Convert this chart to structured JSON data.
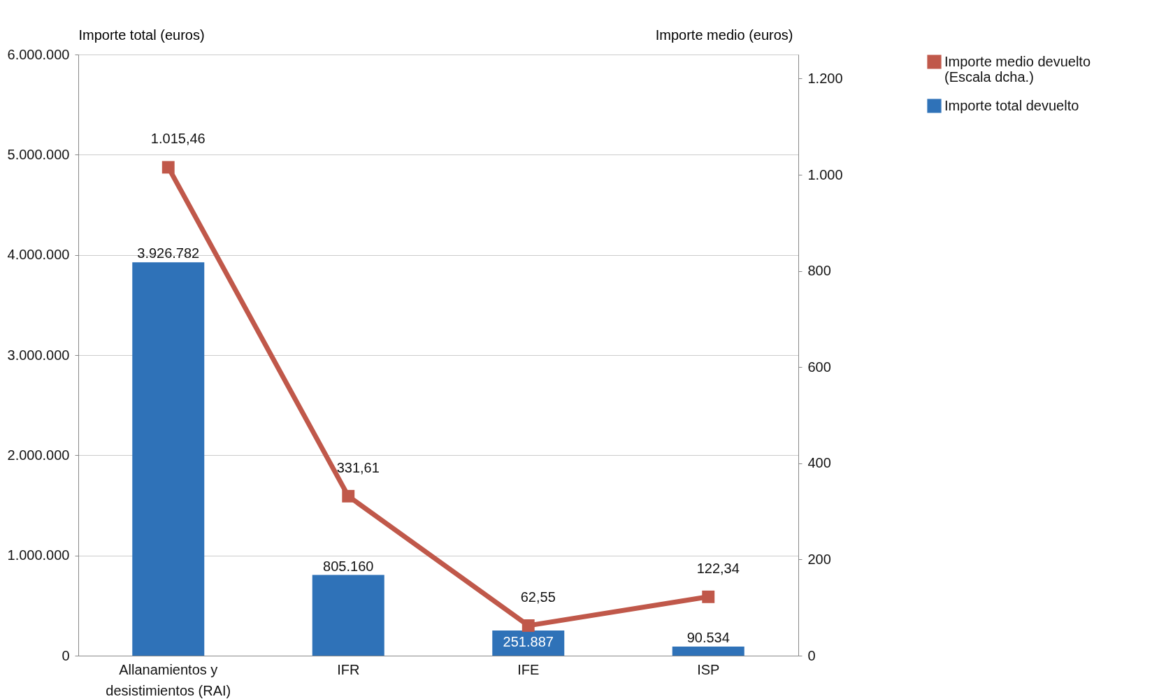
{
  "chart_data": {
    "type": "bar",
    "ylabel": "Importe total (euros)",
    "y2label": "Importe medio (euros)",
    "categories": [
      "Allanamientos y desistimientos (RAI)",
      "IFR",
      "IFE",
      "ISP"
    ],
    "series": [
      {
        "name": "Importe medio devuelto (Escala dcha.)",
        "type": "line",
        "axis": "y2",
        "color": "#c0584a",
        "values": [
          1015.46,
          331.61,
          62.55,
          122.34
        ],
        "value_labels": [
          "1.015,46",
          "331,61",
          "62,55",
          "122,34"
        ]
      },
      {
        "name": "Importe total devuelto",
        "color": "#2f72b8",
        "values": [
          3926782,
          805160,
          251887,
          90534
        ],
        "value_labels": [
          "3.926.782",
          "805.160",
          "251.887",
          "90.534"
        ]
      }
    ],
    "ylim": [
      0,
      6000000
    ],
    "yticks": [
      0,
      {
        "value": 1000000,
        "label": "1.000.000"
      },
      {
        "value": 2000000,
        "label": "2.000.000"
      },
      {
        "value": 3000000,
        "label": "3.000.000"
      },
      {
        "value": 4000000,
        "label": "4.000.000"
      },
      {
        "value": 5000000,
        "label": "5.000.000"
      },
      {
        "value": 6000000,
        "label": "6.000.000"
      }
    ],
    "y2lim": [
      0,
      1250
    ],
    "y2ticks": [
      0,
      200,
      400,
      600,
      800,
      {
        "value": 1000,
        "label": "1.000"
      },
      {
        "value": 1200,
        "label": "1.200"
      }
    ],
    "grid": "y",
    "legend": "right",
    "marker": "square",
    "line_style": "solid"
  }
}
